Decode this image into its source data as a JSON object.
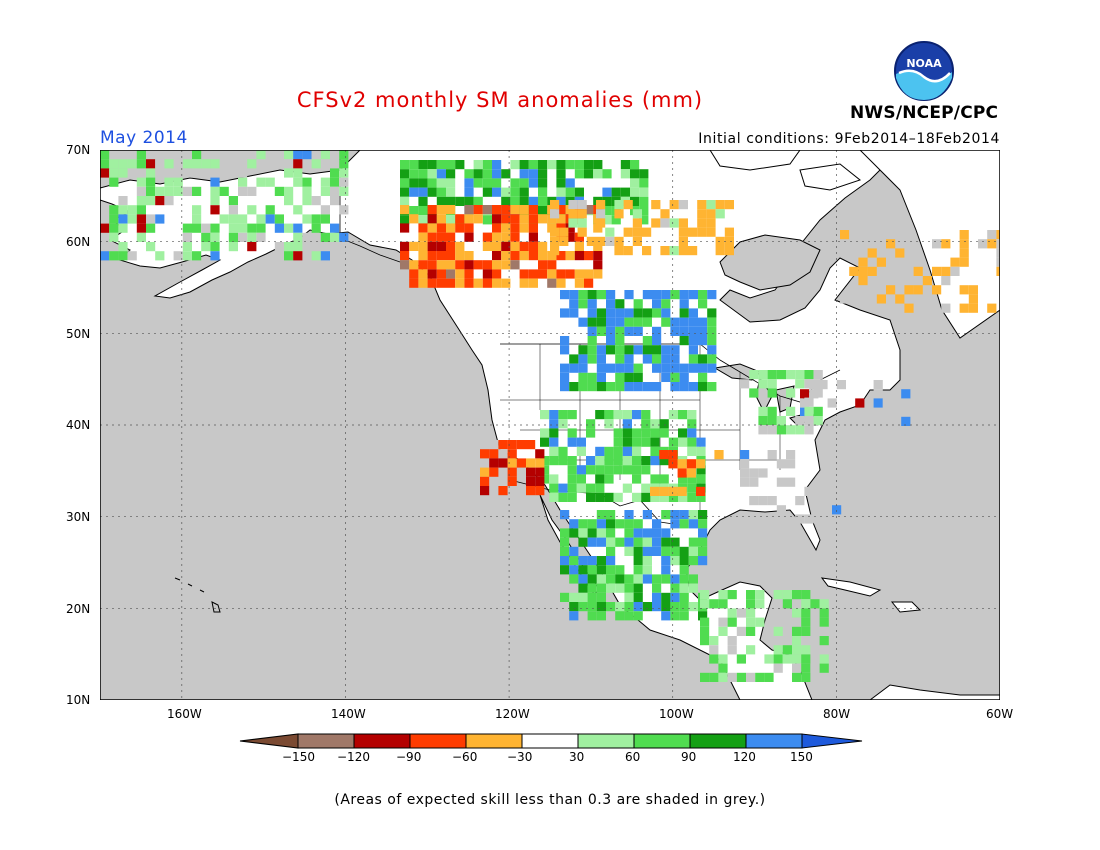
{
  "header": {
    "title": "CFSv2 monthly SM anomalies (mm)",
    "month": "May 2014",
    "initial_conditions": "Initial conditions: 9Feb2014–18Feb2014",
    "agency": "NWS/NCEP/CPC",
    "logo_text": "NOAA"
  },
  "map": {
    "lat_labels": [
      "70N",
      "60N",
      "50N",
      "40N",
      "30N",
      "20N",
      "10N"
    ],
    "lon_labels": [
      "160W",
      "140W",
      "120W",
      "100W",
      "80W",
      "60W"
    ],
    "lat_range": [
      10,
      70
    ],
    "lon_range": [
      -170,
      -60
    ],
    "ocean_color": "#c8c8c8",
    "land_color": "#ffffff"
  },
  "legend": {
    "ticks": [
      "−150",
      "−120",
      "−90",
      "−60",
      "−30",
      "30",
      "60",
      "90",
      "120",
      "150"
    ],
    "colors": [
      "#7b4a32",
      "#a07868",
      "#b40000",
      "#ff3c00",
      "#ffb432",
      "#ffffff",
      "#a0f0a0",
      "#50dc50",
      "#14a014",
      "#3c8cf0",
      "#1e5adc"
    ]
  },
  "note": "(Areas of expected skill less than 0.3 are shaded in grey.)"
}
